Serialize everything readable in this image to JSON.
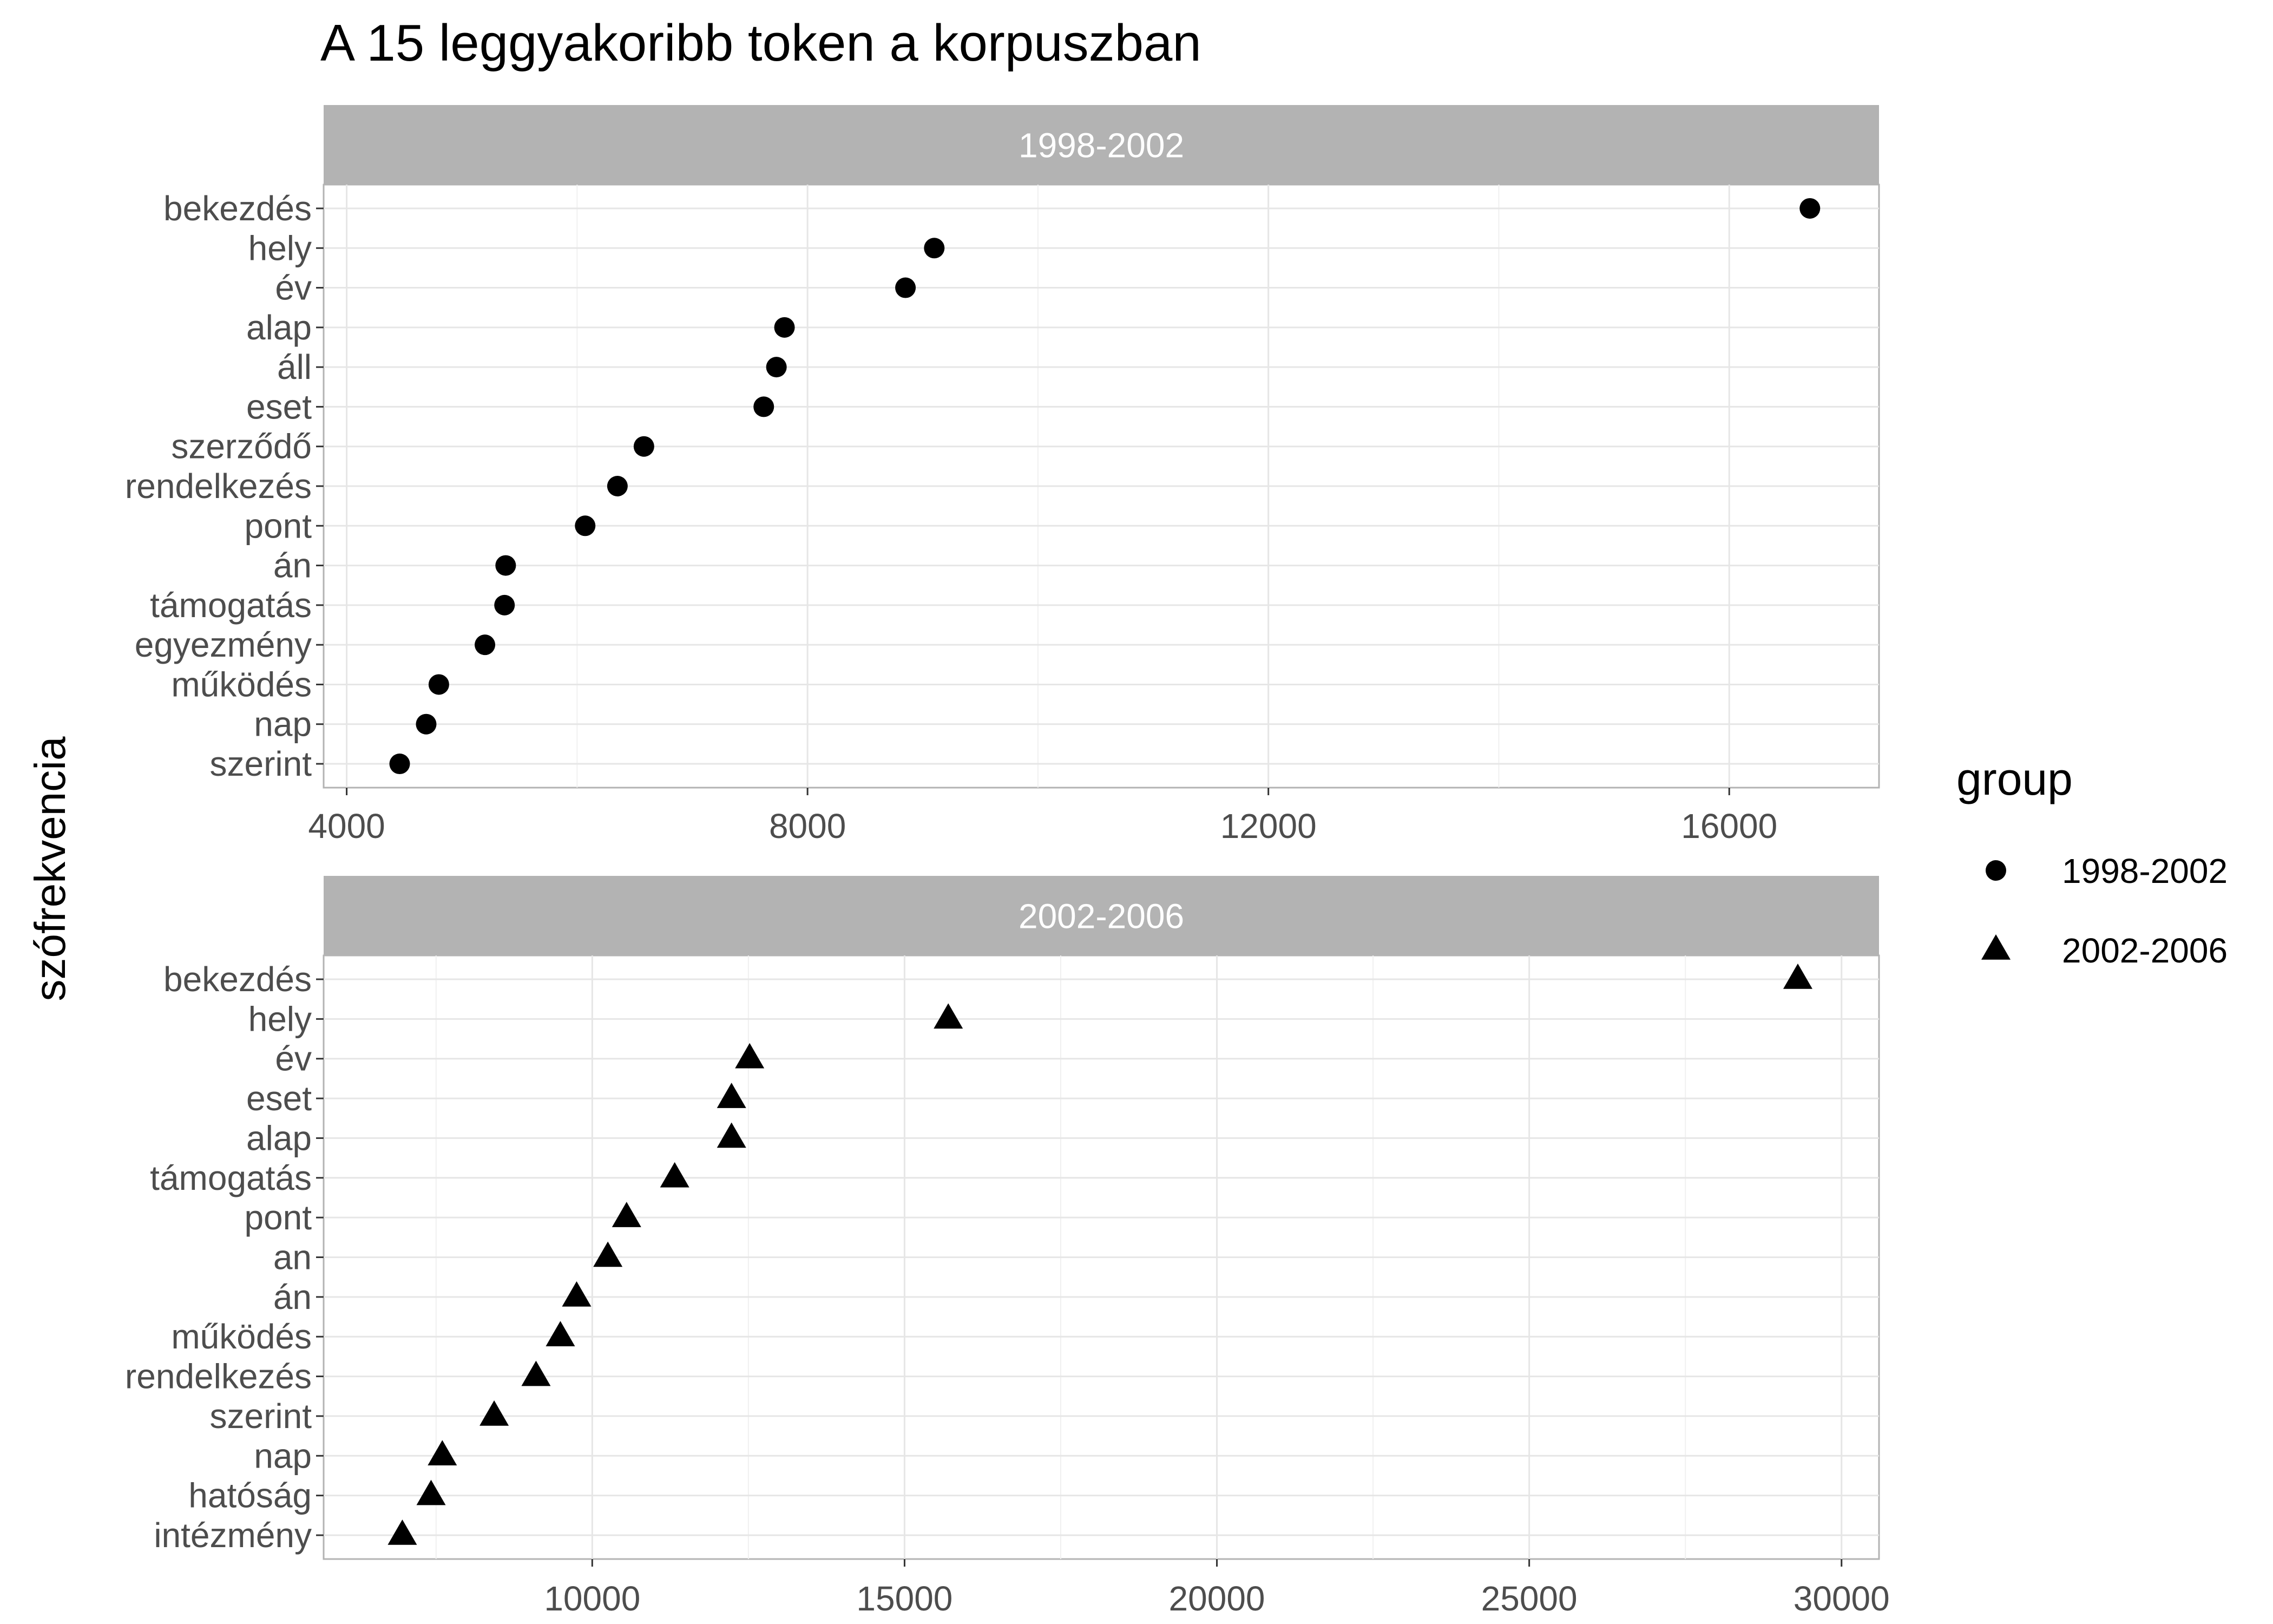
{
  "chart_data": {
    "type": "scatter",
    "title": "A 15 leggyakoribb token a korpuszban",
    "ylabel": "szófrekvencia",
    "xlabel": "",
    "grid": true,
    "legend": {
      "title": "group",
      "position": "right",
      "entries": [
        {
          "label": "1998-2002",
          "shape": "circle"
        },
        {
          "label": "2002-2006",
          "shape": "triangle"
        }
      ]
    },
    "colors": {
      "point": "#000000",
      "strip": "#b3b3b3",
      "strip_text": "#ffffff",
      "grid": "#e6e6e6",
      "grid_minor": "#f0f0f0",
      "panel_border": "#b3b3b3"
    },
    "panels": [
      {
        "strip": "1998-2002",
        "group": "1998-2002",
        "shape": "circle",
        "xlim": [
          3800,
          17300
        ],
        "xticks": [
          4000,
          8000,
          12000,
          16000
        ],
        "categories": [
          "bekezdés",
          "hely",
          "év",
          "alap",
          "áll",
          "eset",
          "szerződő",
          "rendelkezés",
          "pont",
          "án",
          "támogatás",
          "egyezmény",
          "működés",
          "nap",
          "szerint"
        ],
        "values": [
          16700,
          9100,
          8850,
          7800,
          7730,
          7620,
          6580,
          6350,
          6070,
          5380,
          5370,
          5200,
          4800,
          4690,
          4460
        ]
      },
      {
        "strip": "2002-2006",
        "group": "2002-2006",
        "shape": "triangle",
        "xlim": [
          5700,
          30600
        ],
        "xticks": [
          10000,
          15000,
          20000,
          25000,
          30000
        ],
        "categories": [
          "bekezdés",
          "hely",
          "év",
          "eset",
          "alap",
          "támogatás",
          "pont",
          "an",
          "án",
          "működés",
          "rendelkezés",
          "szerint",
          "nap",
          "hatóság",
          "intézmény"
        ],
        "values": [
          29300,
          15700,
          12520,
          12230,
          12230,
          11320,
          10550,
          10250,
          9750,
          9490,
          9100,
          8430,
          7600,
          7420,
          6960
        ]
      }
    ]
  }
}
